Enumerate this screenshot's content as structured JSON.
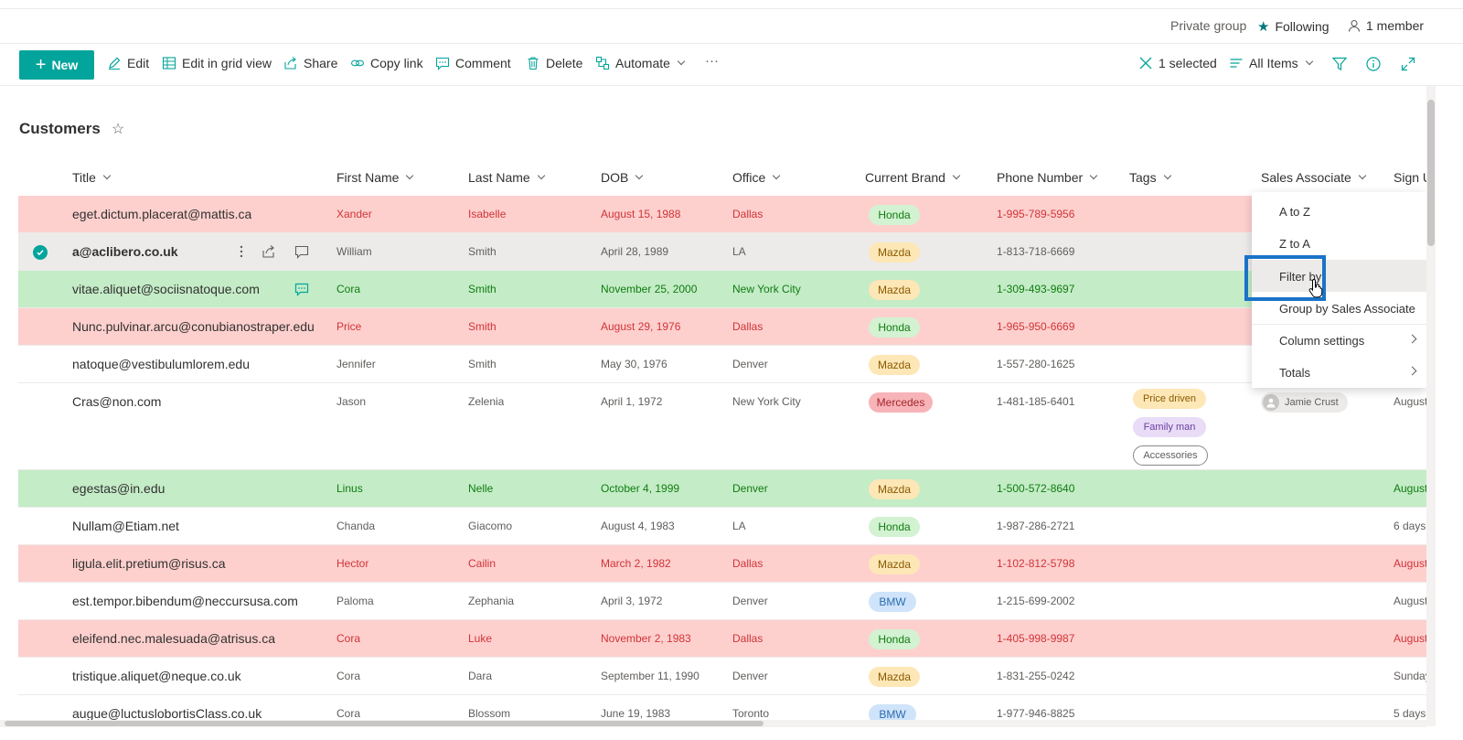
{
  "group_bar": {
    "privacy": "Private group",
    "following": "Following",
    "members": "1 member"
  },
  "command_bar": {
    "new": "New",
    "edit": "Edit",
    "edit_grid": "Edit in grid view",
    "share": "Share",
    "copy_link": "Copy link",
    "comment": "Comment",
    "delete": "Delete",
    "automate": "Automate",
    "more": "···",
    "selected": "1 selected",
    "view": "All Items"
  },
  "list": {
    "title": "Customers",
    "star": "☆"
  },
  "columns": {
    "title": "Title",
    "first_name": "First Name",
    "last_name": "Last Name",
    "dob": "DOB",
    "office": "Office",
    "brand": "Current Brand",
    "phone": "Phone Number",
    "tags": "Tags",
    "sales": "Sales Associate",
    "sign": "Sign U"
  },
  "rows": [
    {
      "style": "red",
      "title": "eget.dictum.placerat@mattis.ca",
      "first": "Xander",
      "last": "Isabelle",
      "dob": "August 15, 1988",
      "office": "Dallas",
      "brand": "Honda",
      "phone": "1-995-789-5956",
      "sign": ""
    },
    {
      "style": "sel",
      "title": "a@aclibero.co.uk",
      "first": "William",
      "last": "Smith",
      "dob": "April 28, 1989",
      "office": "LA",
      "brand": "Mazda",
      "phone": "1-813-718-6669",
      "sign": ""
    },
    {
      "style": "green",
      "title": "vitae.aliquet@sociisnatoque.com",
      "first": "Cora",
      "last": "Smith",
      "dob": "November 25, 2000",
      "office": "New York City",
      "brand": "Mazda",
      "phone": "1-309-493-9697",
      "sign": ""
    },
    {
      "style": "red",
      "title": "Nunc.pulvinar.arcu@conubianostraper.edu",
      "first": "Price",
      "last": "Smith",
      "dob": "August 29, 1976",
      "office": "Dallas",
      "brand": "Honda",
      "phone": "1-965-950-6669",
      "sign": ""
    },
    {
      "style": "plain",
      "title": "natoque@vestibulumlorem.edu",
      "first": "Jennifer",
      "last": "Smith",
      "dob": "May 30, 1976",
      "office": "Denver",
      "brand": "Mazda",
      "phone": "1-557-280-1625",
      "sign": ""
    },
    {
      "style": "plain",
      "title": "Cras@non.com",
      "first": "Jason",
      "last": "Zelenia",
      "dob": "April 1, 1972",
      "office": "New York City",
      "brand": "Mercedes",
      "phone": "1-481-185-6401",
      "sign": "August",
      "tags": [
        "Price driven",
        "Family man",
        "Accessories"
      ],
      "associate": "Jamie Crust"
    },
    {
      "style": "green",
      "title": "egestas@in.edu",
      "first": "Linus",
      "last": "Nelle",
      "dob": "October 4, 1999",
      "office": "Denver",
      "brand": "Mazda",
      "phone": "1-500-572-8640",
      "sign": "August"
    },
    {
      "style": "plain",
      "title": "Nullam@Etiam.net",
      "first": "Chanda",
      "last": "Giacomo",
      "dob": "August 4, 1983",
      "office": "LA",
      "brand": "Honda",
      "phone": "1-987-286-2721",
      "sign": "6 days"
    },
    {
      "style": "red",
      "title": "ligula.elit.pretium@risus.ca",
      "first": "Hector",
      "last": "Cailin",
      "dob": "March 2, 1982",
      "office": "Dallas",
      "brand": "Mazda",
      "phone": "1-102-812-5798",
      "sign": "August"
    },
    {
      "style": "plain",
      "title": "est.tempor.bibendum@neccursusa.com",
      "first": "Paloma",
      "last": "Zephania",
      "dob": "April 3, 1972",
      "office": "Denver",
      "brand": "BMW",
      "phone": "1-215-699-2002",
      "sign": "August"
    },
    {
      "style": "red",
      "title": "eleifend.nec.malesuada@atrisus.ca",
      "first": "Cora",
      "last": "Luke",
      "dob": "November 2, 1983",
      "office": "Dallas",
      "brand": "Honda",
      "phone": "1-405-998-9987",
      "sign": "August"
    },
    {
      "style": "plain",
      "title": "tristique.aliquet@neque.co.uk",
      "first": "Cora",
      "last": "Dara",
      "dob": "September 11, 1990",
      "office": "Denver",
      "brand": "Mazda",
      "phone": "1-831-255-0242",
      "sign": "Sunday"
    },
    {
      "style": "plain",
      "title": "augue@luctuslobortisClass.co.uk",
      "first": "Cora",
      "last": "Blossom",
      "dob": "June 19, 1983",
      "office": "Toronto",
      "brand": "BMW",
      "phone": "1-977-946-8825",
      "sign": "5 days"
    }
  ],
  "column_menu": {
    "a_to_z": "A to Z",
    "z_to_a": "Z to A",
    "filter_by": "Filter by",
    "group_by": "Group by Sales Associate",
    "column_settings": "Column settings",
    "totals": "Totals"
  },
  "colors": {
    "accent": "#03a49b",
    "row_red": "#fdd0ce",
    "row_green": "#c4ecc7",
    "highlight_box": "#1a73c8"
  }
}
